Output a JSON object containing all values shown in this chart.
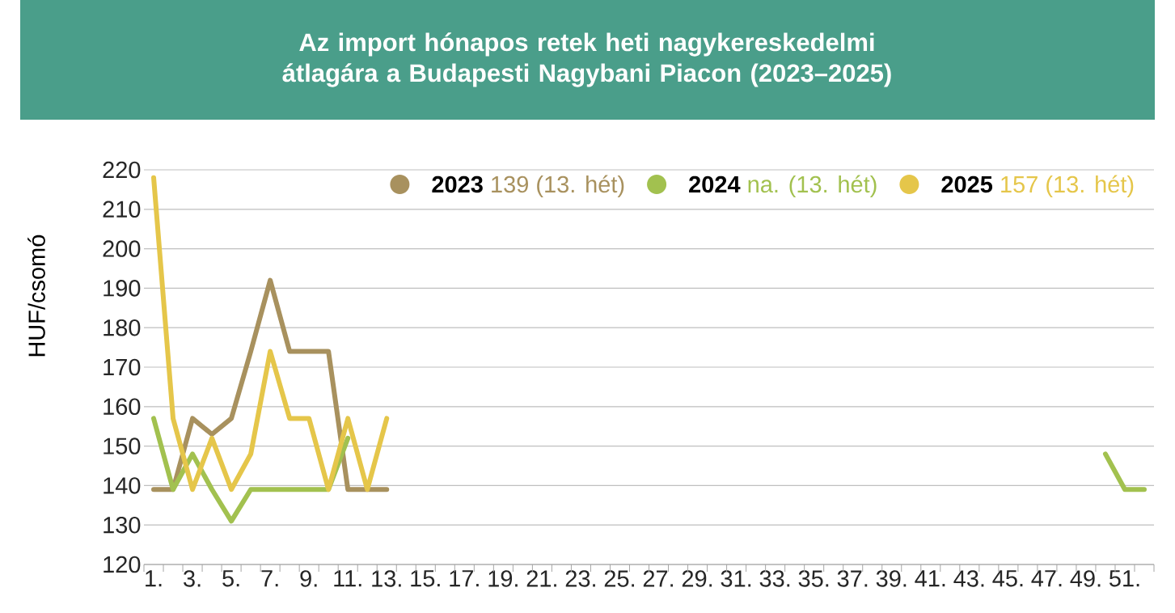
{
  "chart_data": {
    "type": "line",
    "title": "Az import hónapos retek heti nagykereskedelmi átlagára a Budapesti Nagybani Piacon (2023–2025)",
    "ylabel": "HUF/csomó",
    "categories": [
      "1.",
      null,
      "3.",
      null,
      "5.",
      null,
      "7.",
      null,
      "9.",
      null,
      "11.",
      null,
      "13.",
      null,
      "15.",
      null,
      "17.",
      null,
      "19.",
      null,
      "21.",
      null,
      "23.",
      null,
      "25.",
      null,
      "27.",
      null,
      "29.",
      null,
      "31.",
      null,
      "33.",
      null,
      "35.",
      null,
      "37.",
      null,
      "39.",
      null,
      "41.",
      null,
      "43.",
      null,
      "45.",
      null,
      "47.",
      null,
      "49.",
      null,
      "51.",
      null
    ],
    "series": [
      {
        "name": "2023",
        "color": "#a8915e",
        "values": [
          139,
          139,
          157,
          153,
          157,
          174,
          192,
          174,
          174,
          174,
          139,
          139,
          139,
          null,
          null,
          null,
          null,
          null,
          null,
          null,
          null,
          null,
          null,
          null,
          null,
          null,
          null,
          null,
          null,
          null,
          null,
          null,
          null,
          null,
          null,
          null,
          null,
          null,
          null,
          null,
          null,
          null,
          null,
          null,
          null,
          null,
          null,
          null,
          null,
          null,
          null,
          null
        ]
      },
      {
        "name": "2024",
        "color": "#a2c14f",
        "values": [
          157,
          139,
          148,
          139,
          131,
          139,
          139,
          139,
          139,
          139,
          152,
          null,
          null,
          null,
          null,
          null,
          null,
          null,
          null,
          null,
          null,
          null,
          null,
          null,
          null,
          null,
          null,
          null,
          null,
          null,
          null,
          null,
          null,
          null,
          null,
          null,
          null,
          null,
          null,
          null,
          null,
          null,
          null,
          null,
          null,
          null,
          null,
          null,
          null,
          148,
          139,
          139
        ]
      },
      {
        "name": "2025",
        "color": "#e5c64a",
        "values": [
          218,
          157,
          139,
          152,
          139,
          148,
          174,
          157,
          157,
          139,
          157,
          139,
          157,
          null,
          null,
          null,
          null,
          null,
          null,
          null,
          null,
          null,
          null,
          null,
          null,
          null,
          null,
          null,
          null,
          null,
          null,
          null,
          null,
          null,
          null,
          null,
          null,
          null,
          null,
          null,
          null,
          null,
          null,
          null,
          null,
          null,
          null,
          null,
          null,
          null,
          null,
          null
        ]
      }
    ],
    "annotations": [
      "139 (13. hét)",
      "na. (13. hét)",
      "157 (13. hét)"
    ],
    "ylim": [
      120,
      220
    ],
    "yticks": [
      120,
      130,
      140,
      150,
      160,
      170,
      180,
      190,
      200,
      210,
      220
    ],
    "grid": "y",
    "legend": "top",
    "line_style": "solid"
  }
}
